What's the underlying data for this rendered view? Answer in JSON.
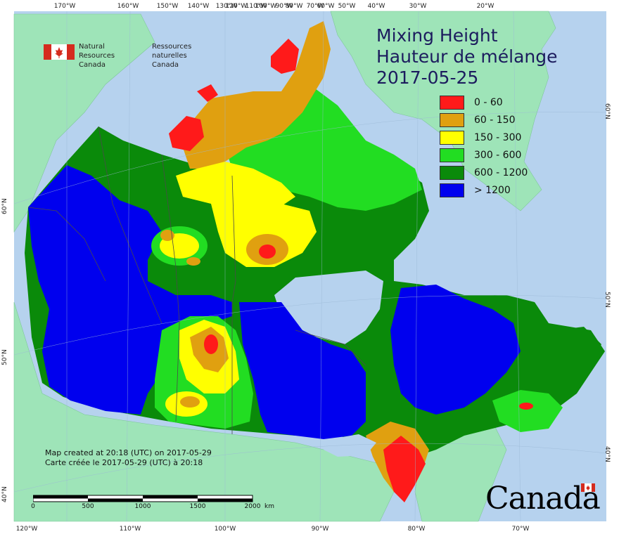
{
  "map": {
    "title": "Mixing Height",
    "title_fr": "Hauteur de mélange",
    "date": "2017-05-25",
    "agency_en": [
      "Natural Resources",
      "Canada"
    ],
    "agency_fr": [
      "Ressources naturelles",
      "Canada"
    ],
    "credit_en": "Map created at 20:18 (UTC) on 2017-05-29",
    "credit_fr": "Carte créée le 2017-05-29 (UTC) à 20:18",
    "wordmark": "Canada"
  },
  "legend": [
    {
      "label": "0 - 60",
      "color": "#ff1a1a"
    },
    {
      "label": "60 - 150",
      "color": "#e0a010"
    },
    {
      "label": "150 - 300",
      "color": "#ffff00"
    },
    {
      "label": "300 - 600",
      "color": "#22dd22"
    },
    {
      "label": "600 - 1200",
      "color": "#0a8a0a"
    },
    {
      "label": "> 1200",
      "color": "#0000ee"
    }
  ],
  "graticule": {
    "top": [
      "170°W",
      "160°W",
      "150°W",
      "140°W",
      "130°W",
      "120°W",
      "110°W",
      "100°W",
      "90°W",
      "80°W",
      "70°W",
      "60°W",
      "50°W",
      "40°W",
      "30°W",
      "20°W"
    ],
    "bottom": [
      "120°W",
      "110°W",
      "100°W",
      "90°W",
      "80°W",
      "70°W"
    ],
    "left": [
      "60°N",
      "50°N",
      "40°N"
    ],
    "right": [
      "60°N",
      "50°N",
      "40°N"
    ]
  },
  "scale_bar": {
    "ticks": [
      "0",
      "500",
      "1000",
      "1500",
      "2000"
    ],
    "unit": "km"
  },
  "colors": {
    "ocean": "#b6d2ee",
    "land": "#9ee4b8",
    "border": "#4a4a4a"
  }
}
